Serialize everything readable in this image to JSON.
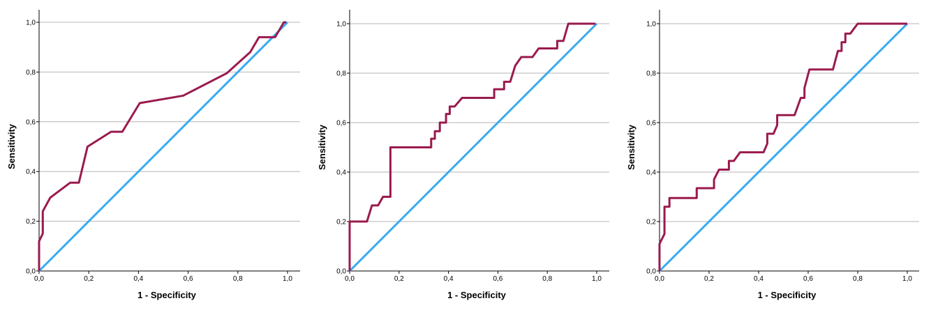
{
  "colors": {
    "roc": "#9a1a4e",
    "reference": "#3aaaf0",
    "grid": "#b5b5b5"
  },
  "chart_data": [
    {
      "type": "line",
      "xlabel": "1 - Specificity",
      "ylabel": "Sensitivity",
      "xlim": [
        0,
        1
      ],
      "ylim": [
        0,
        1
      ],
      "xticks": [
        "0,0",
        "0,2",
        "0,4",
        "0,6",
        "0,8",
        "1,0"
      ],
      "yticks": [
        "0,0",
        "0,2",
        "0,4",
        "0,6",
        "0,8",
        "1,0"
      ],
      "grid": "horizontal",
      "series": [
        {
          "role": "roc",
          "x": [
            0,
            0,
            0.015,
            0.015,
            0.045,
            0.125,
            0.16,
            0.195,
            0.29,
            0.335,
            0.405,
            0.58,
            0.755,
            0.85,
            0.885,
            0.95,
            0.985,
            0.995
          ],
          "y": [
            0,
            0.12,
            0.15,
            0.24,
            0.295,
            0.355,
            0.355,
            0.5,
            0.56,
            0.56,
            0.675,
            0.705,
            0.795,
            0.88,
            0.94,
            0.94,
            1.0,
            1.0
          ]
        },
        {
          "role": "reference",
          "x": [
            0,
            1
          ],
          "y": [
            0,
            1
          ]
        }
      ]
    },
    {
      "type": "line",
      "xlabel": "1 - Specificity",
      "ylabel": "Sensitivity",
      "xlim": [
        0,
        1
      ],
      "ylim": [
        0,
        1
      ],
      "xticks": [
        "0,0",
        "0,2",
        "0,4",
        "0,6",
        "0,8",
        "1,0"
      ],
      "yticks": [
        "0,0",
        "0,2",
        "0,4",
        "0,6",
        "0,8",
        "1,0"
      ],
      "grid": "horizontal",
      "series": [
        {
          "role": "roc",
          "x": [
            0,
            0,
            0.07,
            0.09,
            0.115,
            0.135,
            0.165,
            0.165,
            0.33,
            0.33,
            0.345,
            0.345,
            0.365,
            0.365,
            0.39,
            0.39,
            0.405,
            0.405,
            0.425,
            0.455,
            0.585,
            0.585,
            0.625,
            0.625,
            0.65,
            0.67,
            0.695,
            0.74,
            0.765,
            0.84,
            0.84,
            0.865,
            0.885,
            0.995
          ],
          "y": [
            0,
            0.2,
            0.2,
            0.265,
            0.265,
            0.3,
            0.3,
            0.5,
            0.5,
            0.535,
            0.535,
            0.565,
            0.565,
            0.6,
            0.6,
            0.635,
            0.635,
            0.665,
            0.665,
            0.7,
            0.7,
            0.735,
            0.735,
            0.765,
            0.765,
            0.83,
            0.865,
            0.865,
            0.9,
            0.9,
            0.93,
            0.93,
            1.0,
            1.0
          ]
        },
        {
          "role": "reference",
          "x": [
            0,
            1
          ],
          "y": [
            0,
            1
          ]
        }
      ]
    },
    {
      "type": "line",
      "xlabel": "1 - Specificity",
      "ylabel": "Sensitivity",
      "xlim": [
        0,
        1
      ],
      "ylim": [
        0,
        1
      ],
      "xticks": [
        "0,0",
        "0,2",
        "0,4",
        "0,6",
        "0,8",
        "1,0"
      ],
      "yticks": [
        "0,0",
        "0,2",
        "0,4",
        "0,6",
        "0,8",
        "1,0"
      ],
      "grid": "horizontal",
      "series": [
        {
          "role": "roc",
          "x": [
            0,
            0,
            0.02,
            0.02,
            0.04,
            0.04,
            0.15,
            0.15,
            0.22,
            0.22,
            0.24,
            0.28,
            0.28,
            0.3,
            0.325,
            0.42,
            0.435,
            0.435,
            0.46,
            0.475,
            0.475,
            0.545,
            0.57,
            0.585,
            0.585,
            0.605,
            0.7,
            0.72,
            0.735,
            0.735,
            0.75,
            0.75,
            0.77,
            0.8,
            1.0
          ],
          "y": [
            0,
            0.11,
            0.15,
            0.26,
            0.26,
            0.295,
            0.295,
            0.335,
            0.335,
            0.37,
            0.41,
            0.41,
            0.445,
            0.445,
            0.48,
            0.48,
            0.515,
            0.555,
            0.555,
            0.59,
            0.63,
            0.63,
            0.7,
            0.7,
            0.74,
            0.815,
            0.815,
            0.89,
            0.89,
            0.925,
            0.925,
            0.96,
            0.96,
            1.0,
            1.0
          ]
        },
        {
          "role": "reference",
          "x": [
            0,
            1
          ],
          "y": [
            0,
            1
          ]
        }
      ]
    }
  ]
}
